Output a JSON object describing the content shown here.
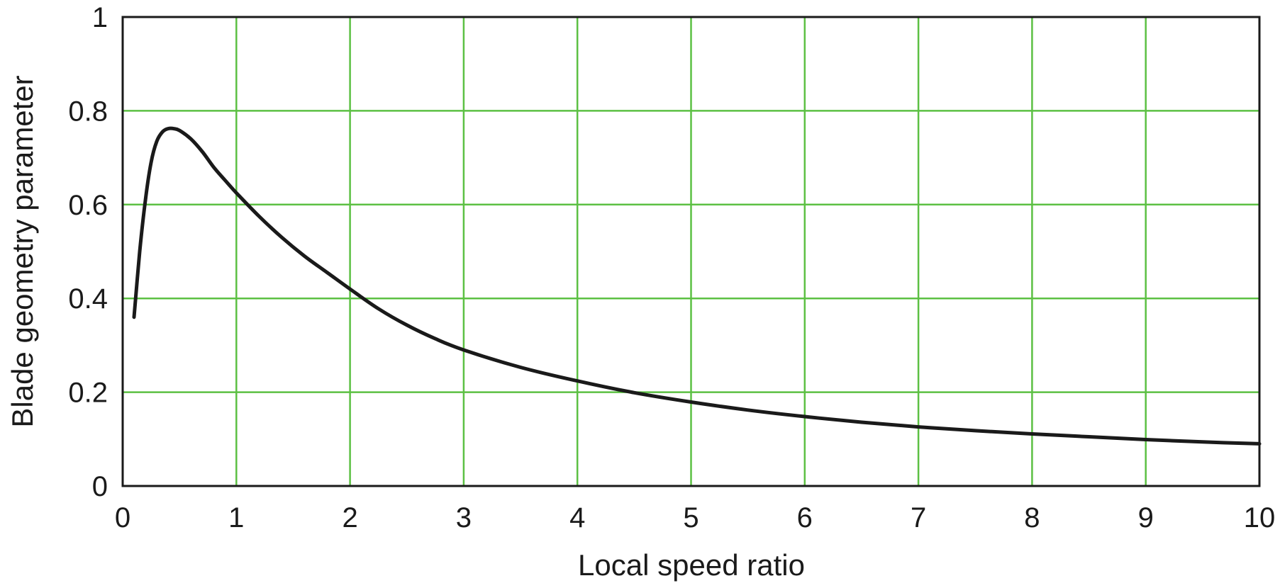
{
  "chart_data": {
    "type": "line",
    "title": "",
    "xlabel": "Local speed ratio",
    "ylabel": "Blade geometry parameter",
    "xlim": [
      0,
      10
    ],
    "ylim": [
      0,
      1
    ],
    "x_ticks": [
      "0",
      "1",
      "2",
      "3",
      "4",
      "5",
      "6",
      "7",
      "8",
      "9",
      "10"
    ],
    "y_ticks": [
      "0",
      "0.2",
      "0.4",
      "0.6",
      "0.8",
      "1"
    ],
    "grid": true,
    "legend": "none",
    "colors": {
      "grid": "#5cc043",
      "line": "#1a1a1a",
      "axis": "#1a1a1a"
    },
    "series": [
      {
        "x": [
          0.1,
          0.15,
          0.2,
          0.25,
          0.3,
          0.35,
          0.4,
          0.45,
          0.5,
          0.6,
          0.7,
          0.8,
          0.9,
          1.0,
          1.2,
          1.4,
          1.6,
          1.8,
          2.0,
          2.25,
          2.5,
          2.75,
          3.0,
          3.5,
          4.0,
          4.5,
          5.0,
          5.5,
          6.0,
          6.5,
          7.0,
          7.5,
          8.0,
          8.5,
          9.0,
          9.5,
          10.0
        ],
        "y": [
          0.36,
          0.5,
          0.61,
          0.69,
          0.735,
          0.755,
          0.762,
          0.762,
          0.758,
          0.74,
          0.713,
          0.68,
          0.652,
          0.625,
          0.575,
          0.53,
          0.49,
          0.455,
          0.42,
          0.378,
          0.343,
          0.314,
          0.29,
          0.253,
          0.224,
          0.199,
          0.179,
          0.162,
          0.148,
          0.136,
          0.126,
          0.118,
          0.111,
          0.105,
          0.099,
          0.094,
          0.09
        ]
      }
    ]
  }
}
